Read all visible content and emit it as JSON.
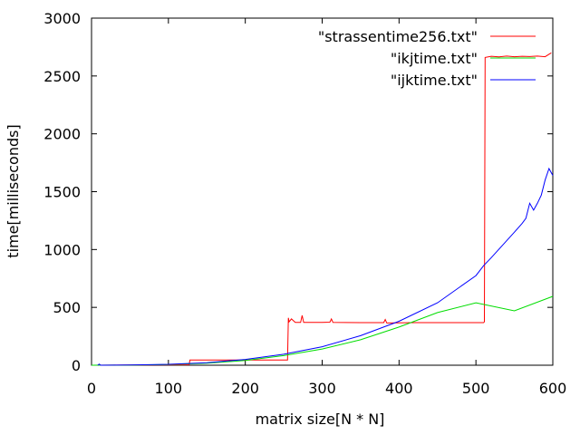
{
  "chart_data": {
    "type": "line",
    "title": "",
    "xlabel": "matrix size[N * N]",
    "ylabel": "time[milliseconds]",
    "xlim": [
      0,
      600
    ],
    "ylim": [
      0,
      3000
    ],
    "xticks": [
      0,
      100,
      200,
      300,
      400,
      500,
      600
    ],
    "yticks": [
      0,
      500,
      1000,
      1500,
      2000,
      2500,
      3000
    ],
    "grid": false,
    "legend_position": "top-right",
    "series": [
      {
        "name": "\"strassentime256.txt\"",
        "color": "#ff0000",
        "points": [
          [
            2,
            0
          ],
          [
            50,
            2
          ],
          [
            100,
            3
          ],
          [
            127,
            4
          ],
          [
            128,
            45
          ],
          [
            200,
            45
          ],
          [
            255,
            45
          ],
          [
            256,
            410
          ],
          [
            257,
            375
          ],
          [
            260,
            400
          ],
          [
            265,
            370
          ],
          [
            272,
            370
          ],
          [
            274,
            430
          ],
          [
            276,
            370
          ],
          [
            300,
            370
          ],
          [
            310,
            372
          ],
          [
            312,
            400
          ],
          [
            314,
            370
          ],
          [
            350,
            368
          ],
          [
            380,
            368
          ],
          [
            382,
            395
          ],
          [
            384,
            365
          ],
          [
            420,
            368
          ],
          [
            450,
            368
          ],
          [
            480,
            368
          ],
          [
            500,
            368
          ],
          [
            510,
            368
          ],
          [
            511,
            375
          ],
          [
            512,
            2660
          ],
          [
            520,
            2670
          ],
          [
            530,
            2665
          ],
          [
            540,
            2672
          ],
          [
            550,
            2666
          ],
          [
            560,
            2670
          ],
          [
            570,
            2668
          ],
          [
            580,
            2672
          ],
          [
            590,
            2666
          ],
          [
            598,
            2700
          ]
        ]
      },
      {
        "name": "\"ikjtime.txt\"",
        "color": "#00dd00",
        "points": [
          [
            0,
            0
          ],
          [
            50,
            1
          ],
          [
            100,
            6
          ],
          [
            150,
            18
          ],
          [
            200,
            41
          ],
          [
            250,
            83
          ],
          [
            300,
            140
          ],
          [
            350,
            220
          ],
          [
            400,
            330
          ],
          [
            450,
            455
          ],
          [
            500,
            540
          ],
          [
            550,
            470
          ],
          [
            600,
            595
          ]
        ]
      },
      {
        "name": "\"ijktime.txt\"",
        "color": "#0000ff",
        "points": [
          [
            8,
            0
          ],
          [
            10,
            10
          ],
          [
            12,
            0
          ],
          [
            50,
            2
          ],
          [
            100,
            8
          ],
          [
            150,
            22
          ],
          [
            200,
            50
          ],
          [
            250,
            95
          ],
          [
            300,
            160
          ],
          [
            350,
            255
          ],
          [
            400,
            380
          ],
          [
            450,
            540
          ],
          [
            500,
            775
          ],
          [
            510,
            860
          ],
          [
            520,
            930
          ],
          [
            550,
            1150
          ],
          [
            560,
            1225
          ],
          [
            565,
            1270
          ],
          [
            570,
            1400
          ],
          [
            575,
            1340
          ],
          [
            580,
            1400
          ],
          [
            585,
            1470
          ],
          [
            590,
            1600
          ],
          [
            595,
            1700
          ],
          [
            600,
            1640
          ]
        ]
      }
    ]
  }
}
